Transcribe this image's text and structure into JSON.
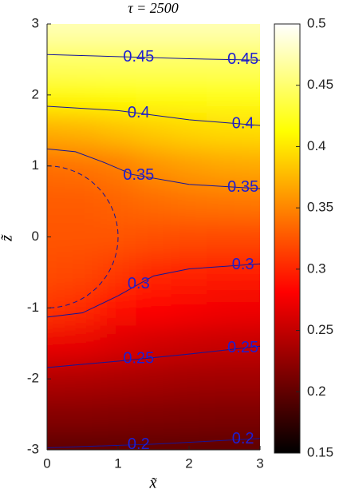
{
  "chart_data": {
    "type": "contour",
    "title": "τ  = 2500",
    "x_label": "x̃",
    "y_label": "z̃",
    "xlim": [
      0,
      3
    ],
    "xticks": [
      0,
      1,
      2,
      3
    ],
    "ylim": [
      -3,
      3
    ],
    "yticks": [
      -3,
      -2,
      -1,
      0,
      1,
      2,
      3
    ],
    "colormap": "hot",
    "clim": [
      0.15,
      0.5
    ],
    "cticks": [
      0.15,
      0.2,
      0.25,
      0.3,
      0.35,
      0.4,
      0.45,
      0.5
    ],
    "line_color": "#14149a",
    "label_color": "#1e1ed2",
    "reference_circle": {
      "radius": 1,
      "style": "dashed"
    },
    "field": {
      "x": [
        0,
        0.5,
        1,
        1.5,
        2,
        2.5,
        3
      ],
      "z": [
        3,
        2.5,
        2,
        1.5,
        1,
        0.5,
        0,
        -0.5,
        -1,
        -1.5,
        -2,
        -2.5,
        -3
      ],
      "values": [
        [
          0.475,
          0.475,
          0.475,
          0.475,
          0.475,
          0.475,
          0.475
        ],
        [
          0.447,
          0.447,
          0.447,
          0.447,
          0.447,
          0.447,
          0.447
        ],
        [
          0.41,
          0.411,
          0.413,
          0.416,
          0.418,
          0.42,
          0.421
        ],
        [
          0.371,
          0.374,
          0.38,
          0.386,
          0.391,
          0.394,
          0.395
        ],
        [
          0.338,
          0.34,
          0.345,
          0.356,
          0.362,
          0.366,
          0.368
        ],
        [
          0.328,
          0.328,
          0.332,
          0.337,
          0.34,
          0.342,
          0.343
        ],
        [
          0.325,
          0.325,
          0.325,
          0.322,
          0.32,
          0.319,
          0.319
        ],
        [
          0.32,
          0.318,
          0.31,
          0.302,
          0.298,
          0.297,
          0.296
        ],
        [
          0.308,
          0.303,
          0.29,
          0.282,
          0.278,
          0.275,
          0.274
        ],
        [
          0.272,
          0.27,
          0.264,
          0.258,
          0.255,
          0.253,
          0.252
        ],
        [
          0.241,
          0.24,
          0.238,
          0.236,
          0.234,
          0.233,
          0.233
        ],
        [
          0.219,
          0.219,
          0.218,
          0.217,
          0.216,
          0.215,
          0.215
        ],
        [
          0.198,
          0.198,
          0.198,
          0.198,
          0.198,
          0.198,
          0.198
        ]
      ]
    },
    "contours": [
      {
        "level": 0.45,
        "x": [
          0,
          1,
          2,
          3
        ],
        "z": [
          2.57,
          2.54,
          2.51,
          2.49
        ]
      },
      {
        "level": 0.4,
        "x": [
          0,
          1,
          2,
          3
        ],
        "z": [
          1.84,
          1.78,
          1.65,
          1.57
        ]
      },
      {
        "level": 0.35,
        "x": [
          0,
          0.4,
          0.8,
          1.2,
          2,
          3
        ],
        "z": [
          1.24,
          1.2,
          1.05,
          0.88,
          0.74,
          0.68
        ]
      },
      {
        "level": 0.3,
        "x": [
          0,
          0.5,
          1,
          1.5,
          2,
          3
        ],
        "z": [
          -1.13,
          -1.07,
          -0.83,
          -0.55,
          -0.45,
          -0.38
        ]
      },
      {
        "level": 0.25,
        "x": [
          0,
          1,
          2,
          3
        ],
        "z": [
          -1.84,
          -1.75,
          -1.65,
          -1.54
        ]
      },
      {
        "level": 0.2,
        "x": [
          0,
          1.5,
          3
        ],
        "z": [
          -2.97,
          -2.92,
          -2.84
        ]
      }
    ]
  }
}
